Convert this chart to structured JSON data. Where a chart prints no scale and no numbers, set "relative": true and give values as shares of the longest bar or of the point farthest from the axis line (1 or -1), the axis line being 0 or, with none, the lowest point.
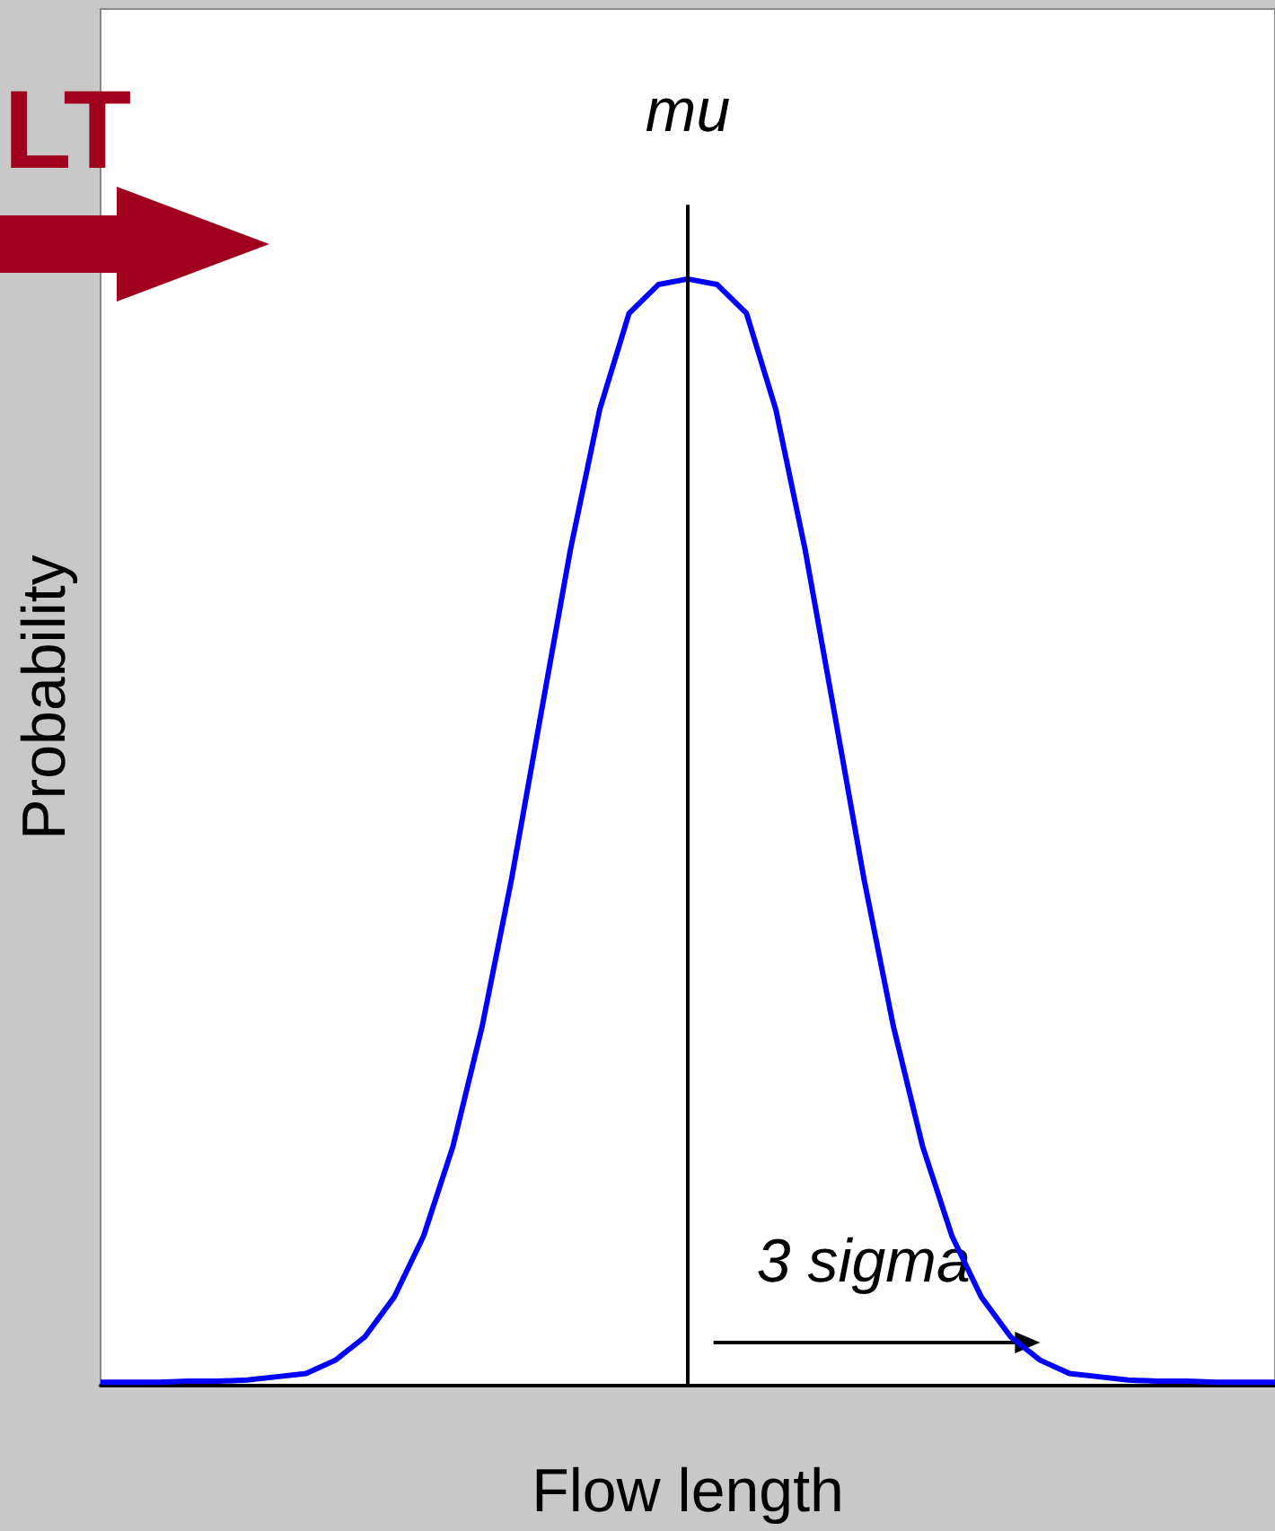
{
  "chart_data": {
    "type": "line",
    "xlabel": "Flow length",
    "ylabel": "Probability",
    "relative": true,
    "grid": false,
    "marker": "none",
    "tick_labels": false,
    "categories": [
      null,
      null,
      null,
      null,
      null,
      null,
      null,
      null,
      null,
      null,
      null,
      null,
      null,
      null,
      null,
      null,
      null,
      null,
      null,
      null,
      null,
      null,
      null,
      null,
      null,
      null,
      null,
      null,
      null,
      null,
      null,
      null,
      null,
      null,
      null,
      null,
      null,
      null,
      null,
      null,
      null
    ],
    "series": [
      {
        "color": "#0000ff",
        "values": [
          0.003,
          0.003,
          0.003,
          0.004,
          0.004,
          0.005,
          0.008,
          0.011,
          0.023,
          0.044,
          0.08,
          0.135,
          0.216,
          0.325,
          0.458,
          0.607,
          0.755,
          0.882,
          0.969,
          0.995,
          1,
          0.995,
          0.969,
          0.882,
          0.755,
          0.607,
          0.458,
          0.325,
          0.216,
          0.135,
          0.08,
          0.044,
          0.023,
          0.011,
          0.008,
          0.005,
          0.004,
          0.004,
          0.003,
          0.003,
          0.003
        ]
      }
    ],
    "annotations": [
      "LT",
      "mu",
      "3 sigma"
    ]
  }
}
